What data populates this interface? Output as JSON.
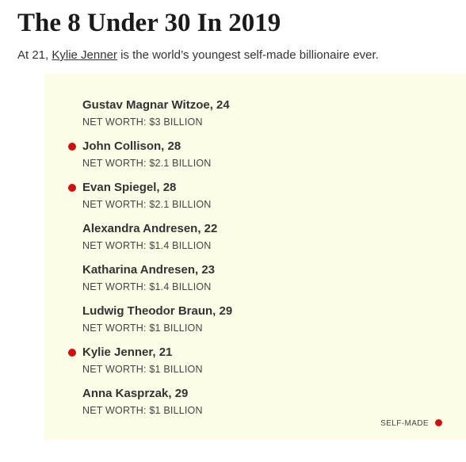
{
  "header": {
    "title": "The 8 Under 30 In 2019",
    "subtitle_prefix": "At 21, ",
    "subtitle_link": "Kylie Jenner",
    "subtitle_suffix": " is the world’s youngest self-made billionaire ever."
  },
  "list": {
    "items": [
      {
        "name": "Gustav Magnar Witzoe, 24",
        "worth": "NET WORTH: $3 BILLION",
        "self_made": false
      },
      {
        "name": "John Collison, 28",
        "worth": "NET WORTH: $2.1 BILLION",
        "self_made": true
      },
      {
        "name": "Evan Spiegel, 28",
        "worth": "NET WORTH: $2.1 BILLION",
        "self_made": true
      },
      {
        "name": "Alexandra Andresen, 22",
        "worth": "NET WORTH: $1.4 BILLION",
        "self_made": false
      },
      {
        "name": "Katharina Andresen, 23",
        "worth": "NET WORTH: $1.4 BILLION",
        "self_made": false
      },
      {
        "name": "Ludwig Theodor Braun, 29",
        "worth": "NET WORTH: $1 BILLION",
        "self_made": false
      },
      {
        "name": "Kylie Jenner, 21",
        "worth": "NET WORTH: $1 BILLION",
        "self_made": true
      },
      {
        "name": "Anna Kasprzak, 29",
        "worth": "NET WORTH: $1 BILLION",
        "self_made": false
      }
    ]
  },
  "legend": {
    "label": "SELF-MADE"
  },
  "colors": {
    "panel_background": "#fefde8",
    "self_made_dot": "#cc1111",
    "text": "#333333"
  }
}
